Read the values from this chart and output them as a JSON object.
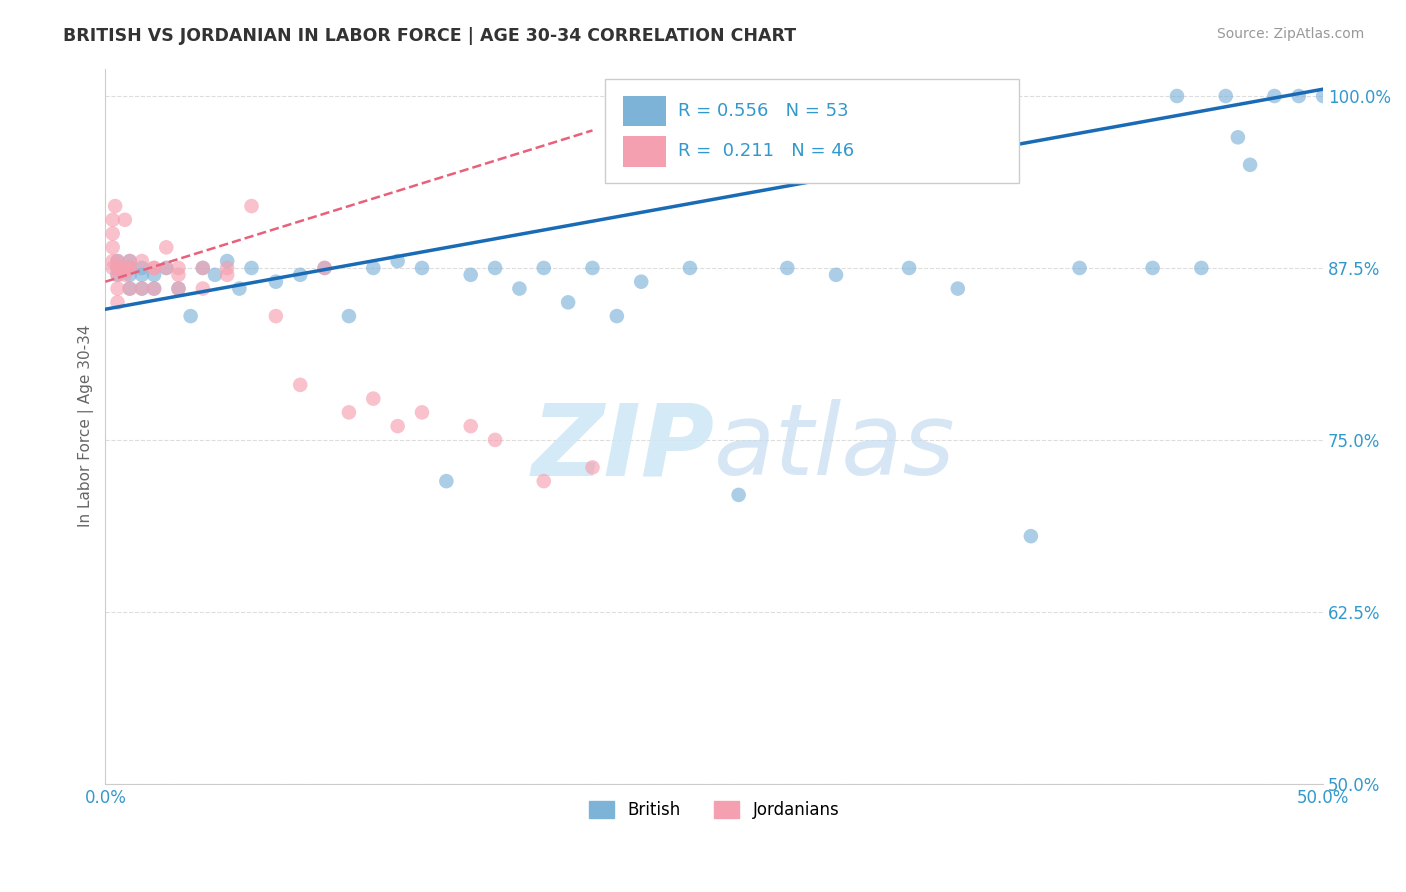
{
  "title": "BRITISH VS JORDANIAN IN LABOR FORCE | AGE 30-34 CORRELATION CHART",
  "source": "Source: ZipAtlas.com",
  "ylabel": "In Labor Force | Age 30-34",
  "xlim": [
    0.0,
    0.5
  ],
  "ylim": [
    0.5,
    1.02
  ],
  "yticks": [
    0.5,
    0.625,
    0.75,
    0.875,
    1.0
  ],
  "ytick_labels": [
    "50.0%",
    "62.5%",
    "75.0%",
    "87.5%",
    "100.0%"
  ],
  "xtick_positions": [
    0.0,
    0.1,
    0.2,
    0.3,
    0.4,
    0.5
  ],
  "xtick_labels": [
    "0.0%",
    "",
    "",
    "",
    "",
    "50.0%"
  ],
  "british_R": 0.556,
  "british_N": 53,
  "jordanian_R": 0.211,
  "jordanian_N": 46,
  "british_color": "#7EB3D8",
  "jordanian_color": "#F5A0B0",
  "trendline_british_color": "#1A6BB5",
  "trendline_jordanian_color": "#E8607A",
  "background_color": "#FFFFFF",
  "grid_color": "#DDDDDD",
  "watermark_color": "#D0E8F5",
  "british_x": [
    0.005,
    0.005,
    0.005,
    0.01,
    0.01,
    0.01,
    0.01,
    0.015,
    0.015,
    0.015,
    0.02,
    0.02,
    0.025,
    0.03,
    0.035,
    0.04,
    0.045,
    0.05,
    0.055,
    0.06,
    0.07,
    0.08,
    0.09,
    0.1,
    0.11,
    0.12,
    0.13,
    0.14,
    0.15,
    0.16,
    0.17,
    0.18,
    0.19,
    0.2,
    0.21,
    0.22,
    0.24,
    0.26,
    0.28,
    0.3,
    0.33,
    0.35,
    0.38,
    0.4,
    0.43,
    0.44,
    0.45,
    0.46,
    0.465,
    0.47,
    0.48,
    0.49,
    0.5
  ],
  "british_y": [
    0.875,
    0.87,
    0.88,
    0.875,
    0.88,
    0.87,
    0.86,
    0.875,
    0.87,
    0.86,
    0.86,
    0.87,
    0.875,
    0.86,
    0.84,
    0.875,
    0.87,
    0.88,
    0.86,
    0.875,
    0.865,
    0.87,
    0.875,
    0.84,
    0.875,
    0.88,
    0.875,
    0.72,
    0.87,
    0.875,
    0.86,
    0.875,
    0.85,
    0.875,
    0.84,
    0.865,
    0.875,
    0.71,
    0.875,
    0.87,
    0.875,
    0.86,
    0.68,
    0.875,
    0.875,
    1.0,
    0.875,
    1.0,
    0.97,
    0.95,
    1.0,
    1.0,
    1.0
  ],
  "jordanian_x": [
    0.003,
    0.003,
    0.003,
    0.003,
    0.003,
    0.004,
    0.005,
    0.005,
    0.005,
    0.005,
    0.005,
    0.005,
    0.007,
    0.008,
    0.008,
    0.008,
    0.01,
    0.01,
    0.01,
    0.01,
    0.015,
    0.015,
    0.02,
    0.02,
    0.02,
    0.025,
    0.025,
    0.03,
    0.03,
    0.03,
    0.04,
    0.04,
    0.05,
    0.05,
    0.06,
    0.07,
    0.08,
    0.09,
    0.1,
    0.11,
    0.12,
    0.13,
    0.15,
    0.16,
    0.18,
    0.2
  ],
  "jordanian_y": [
    0.875,
    0.88,
    0.89,
    0.9,
    0.91,
    0.92,
    0.875,
    0.88,
    0.86,
    0.85,
    0.875,
    0.87,
    0.875,
    0.91,
    0.875,
    0.87,
    0.88,
    0.875,
    0.86,
    0.875,
    0.88,
    0.86,
    0.875,
    0.86,
    0.875,
    0.89,
    0.875,
    0.875,
    0.87,
    0.86,
    0.875,
    0.86,
    0.875,
    0.87,
    0.92,
    0.84,
    0.79,
    0.875,
    0.77,
    0.78,
    0.76,
    0.77,
    0.76,
    0.75,
    0.72,
    0.73
  ]
}
